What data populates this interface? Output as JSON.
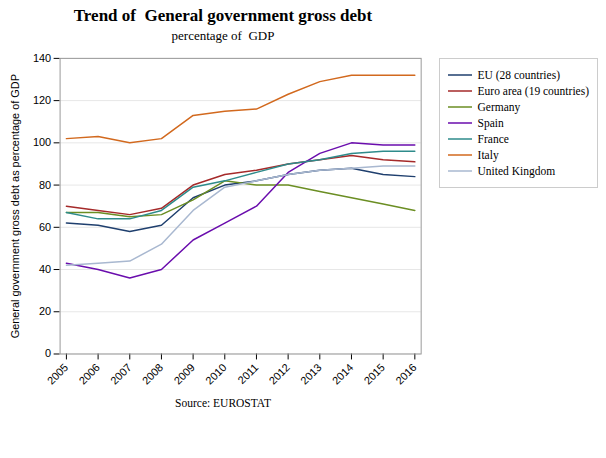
{
  "chart_data": {
    "type": "line",
    "title": "Trend of  General government gross debt",
    "subtitle": "percentage of  GDP",
    "caption": "Source: EUROSTAT",
    "ylabel": "General government gross debt as percentage of GDP",
    "x": [
      2005,
      2006,
      2007,
      2008,
      2009,
      2010,
      2011,
      2012,
      2013,
      2014,
      2015,
      2016
    ],
    "series": [
      {
        "name": "EU (28 countries)",
        "color": "#1f3f6e",
        "values": [
          62,
          61,
          58,
          61,
          74,
          80,
          82,
          85,
          87,
          88,
          85,
          84
        ]
      },
      {
        "name": "Euro area (19 countries)",
        "color": "#a52a2a",
        "values": [
          70,
          68,
          66,
          69,
          80,
          85,
          87,
          90,
          92,
          94,
          92,
          91
        ]
      },
      {
        "name": "Germany",
        "color": "#6b8e23",
        "values": [
          67,
          67,
          65,
          66,
          73,
          82,
          80,
          80,
          77,
          74,
          71,
          68
        ]
      },
      {
        "name": "Spain",
        "color": "#6a0dad",
        "values": [
          43,
          40,
          36,
          40,
          54,
          62,
          70,
          86,
          95,
          100,
          99,
          99
        ]
      },
      {
        "name": "France",
        "color": "#2e8b8b",
        "values": [
          67,
          64,
          64,
          68,
          79,
          82,
          86,
          90,
          92,
          95,
          96,
          96
        ]
      },
      {
        "name": "Italy",
        "color": "#d2691e",
        "values": [
          102,
          103,
          100,
          102,
          113,
          115,
          116,
          123,
          129,
          132,
          132,
          132
        ]
      },
      {
        "name": "United Kingdom",
        "color": "#a9b8d0",
        "values": [
          42,
          43,
          44,
          52,
          68,
          79,
          82,
          85,
          87,
          88,
          89,
          89
        ]
      }
    ],
    "xlim": [
      2004.8,
      2016.2
    ],
    "xticks": [
      2005,
      2006,
      2007,
      2008,
      2009,
      2010,
      2011,
      2012,
      2013,
      2014,
      2015,
      2016
    ],
    "ylim": [
      0,
      140
    ],
    "yticks": [
      0,
      20,
      40,
      60,
      80,
      100,
      120,
      140
    ],
    "grid": "y",
    "legend": "right"
  }
}
